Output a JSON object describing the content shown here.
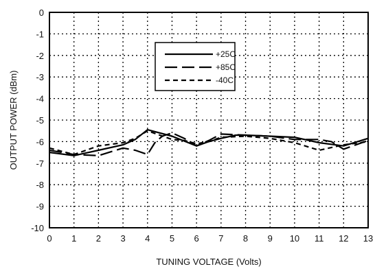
{
  "chart_data": {
    "type": "line",
    "xlabel": "TUNING VOLTAGE (Volts)",
    "ylabel": "OUTPUT POWER (dBm)",
    "xlim": [
      0,
      13
    ],
    "ylim": [
      -10,
      0
    ],
    "grid": true,
    "grid_style": "dotted",
    "legend_position": "top-center",
    "x_ticks": [
      "0",
      "1",
      "2",
      "3",
      "4",
      "5",
      "6",
      "7",
      "8",
      "9",
      "10",
      "11",
      "12",
      "13"
    ],
    "y_ticks": [
      "0",
      "-1",
      "-2",
      "-3",
      "-4",
      "-5",
      "-6",
      "-7",
      "-8",
      "-9",
      "-10"
    ],
    "series": [
      {
        "name": "+25C",
        "dash": "solid",
        "x": [
          0,
          1,
          2,
          3,
          3.5,
          4,
          5,
          6,
          6.5,
          7,
          7.6,
          8,
          9,
          10,
          11,
          12,
          13
        ],
        "y": [
          -6.5,
          -6.65,
          -6.4,
          -6.15,
          -5.9,
          -5.45,
          -5.75,
          -6.2,
          -6.0,
          -5.85,
          -5.7,
          -5.7,
          -5.75,
          -5.8,
          -6.05,
          -6.2,
          -5.85
        ]
      },
      {
        "name": "+85C",
        "dash": "long-dash",
        "x": [
          0,
          1,
          2,
          3,
          3.5,
          4,
          4.3,
          4.6,
          5,
          5.5,
          6,
          6.5,
          7,
          8,
          9,
          10,
          11,
          11.5,
          12,
          12.5,
          13
        ],
        "y": [
          -6.4,
          -6.6,
          -6.65,
          -6.3,
          -6.4,
          -6.6,
          -6.05,
          -5.75,
          -5.6,
          -5.85,
          -6.2,
          -5.95,
          -5.65,
          -5.7,
          -5.75,
          -5.9,
          -5.9,
          -6.0,
          -6.35,
          -6.15,
          -5.95
        ]
      },
      {
        "name": "-40C",
        "dash": "short-dash",
        "x": [
          0,
          1,
          2,
          3,
          3.5,
          4,
          5,
          5.5,
          6,
          6.5,
          7,
          8,
          9,
          10,
          11,
          12,
          13
        ],
        "y": [
          -6.3,
          -6.6,
          -6.2,
          -6.05,
          -5.85,
          -5.5,
          -5.9,
          -5.95,
          -6.1,
          -6.0,
          -5.8,
          -5.75,
          -5.85,
          -6.05,
          -6.4,
          -6.15,
          -6.0
        ]
      }
    ]
  }
}
